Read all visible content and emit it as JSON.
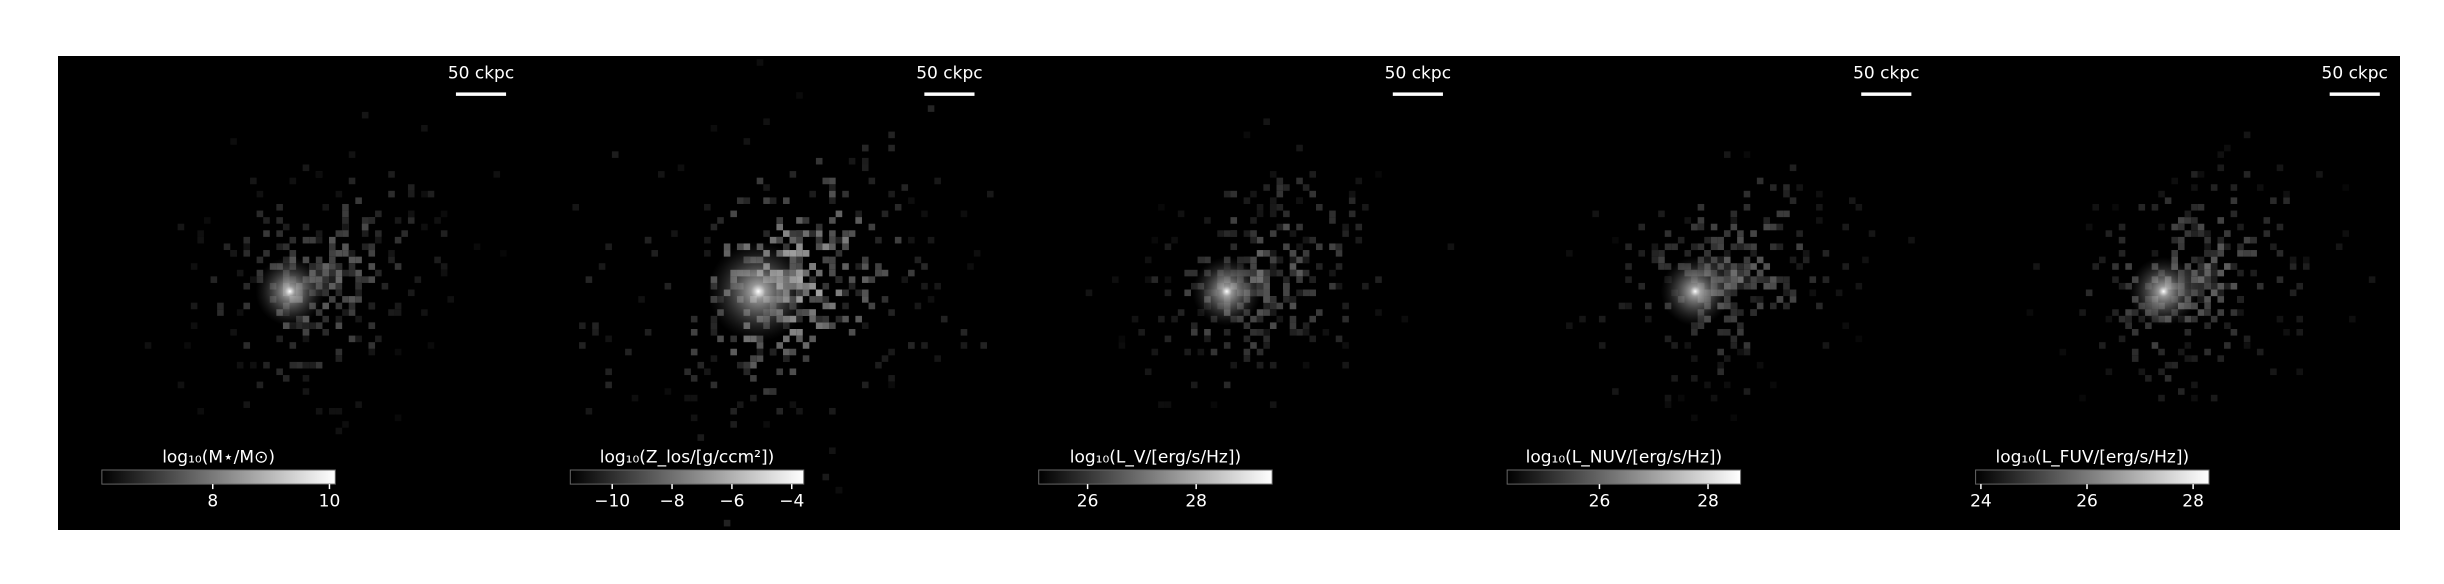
{
  "panels": [
    {
      "scale_label": "50 ckpc",
      "colorbar": {
        "label": "log₁₀(M⋆/M⊙)",
        "lim": [
          6.1,
          10.1
        ],
        "ticks": [
          8,
          10
        ]
      }
    },
    {
      "scale_label": "50 ckpc",
      "colorbar": {
        "label": "log₁₀(Z_los/[g/ccm²])",
        "lim": [
          -11.4,
          -3.6
        ],
        "ticks": [
          {
            "value": -10,
            "label": "−10"
          },
          {
            "value": -8,
            "label": "−8"
          },
          {
            "value": -6,
            "label": "−6"
          },
          {
            "value": -4,
            "label": "−4"
          }
        ]
      }
    },
    {
      "scale_label": "50 ckpc",
      "colorbar": {
        "label": "log₁₀(L_V/[erg/s/Hz])",
        "lim": [
          25.1,
          29.4
        ],
        "ticks": [
          26,
          28
        ]
      }
    },
    {
      "scale_label": "50 ckpc",
      "colorbar": {
        "label": "log₁₀(L_NUV/[erg/s/Hz])",
        "lim": [
          24.3,
          28.6
        ],
        "ticks": [
          26,
          28
        ]
      }
    },
    {
      "scale_label": "50 ckpc",
      "colorbar": {
        "label": "log₁₀(L_FUV/[erg/s/Hz])",
        "lim": [
          23.9,
          28.3
        ],
        "ticks": [
          24,
          26,
          28
        ]
      }
    }
  ]
}
